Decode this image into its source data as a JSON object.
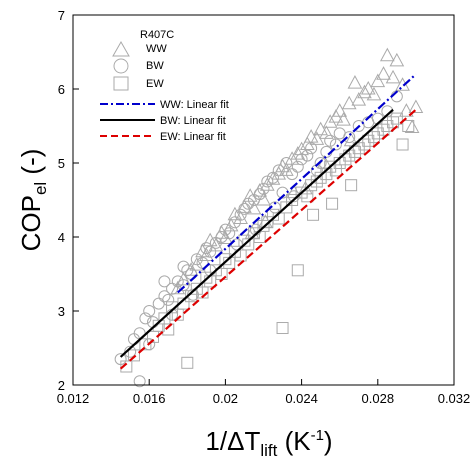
{
  "chart_data": {
    "type": "scatter",
    "xlim": [
      0.012,
      0.032
    ],
    "ylim": [
      2,
      7
    ],
    "x_ticks": [
      "0.012",
      "0.016",
      "0.02",
      "0.024",
      "0.028",
      "0.032"
    ],
    "y_ticks": [
      "2",
      "3",
      "4",
      "5",
      "6",
      "7"
    ],
    "xlabel": {
      "main": "1/ΔT",
      "sub": "lift",
      "unit_open": " (K",
      "unit_sup": "-1",
      "unit_close": ")"
    },
    "ylabel": {
      "main": "COP",
      "sub": "el",
      "rest": " (-)"
    },
    "legend": {
      "position": "top-left",
      "title": "R407C",
      "entries": [
        {
          "label": "WW",
          "kind": "marker",
          "marker": "triangle"
        },
        {
          "label": "BW",
          "kind": "marker",
          "marker": "circle"
        },
        {
          "label": "EW",
          "kind": "marker",
          "marker": "square"
        },
        {
          "label": "WW: Linear fit",
          "kind": "line",
          "color": "#0000cc",
          "dash": "dashdot"
        },
        {
          "label": "BW: Linear fit",
          "kind": "line",
          "color": "#000000",
          "dash": "solid"
        },
        {
          "label": "EW: Linear fit",
          "kind": "line",
          "color": "#dd0000",
          "dash": "dash"
        }
      ]
    },
    "fits": [
      {
        "name": "WW: Linear fit",
        "color": "#0000cc",
        "dash": "dashdot",
        "x": [
          0.0175,
          0.03
        ],
        "y": [
          3.25,
          6.2
        ]
      },
      {
        "name": "BW: Linear fit",
        "color": "#000000",
        "dash": "solid",
        "x": [
          0.0145,
          0.0288
        ],
        "y": [
          2.38,
          5.72
        ]
      },
      {
        "name": "EW: Linear fit",
        "color": "#dd0000",
        "dash": "dash",
        "x": [
          0.0145,
          0.03
        ],
        "y": [
          2.22,
          5.72
        ]
      }
    ],
    "series": [
      {
        "name": "WW",
        "marker": "triangle",
        "color": "#aaaaaa",
        "points": [
          [
            0.0175,
            3.3
          ],
          [
            0.0178,
            3.42
          ],
          [
            0.0182,
            3.55
          ],
          [
            0.0185,
            3.62
          ],
          [
            0.0188,
            3.8
          ],
          [
            0.019,
            3.75
          ],
          [
            0.0192,
            3.95
          ],
          [
            0.0195,
            3.88
          ],
          [
            0.0198,
            4.05
          ],
          [
            0.02,
            3.98
          ],
          [
            0.0203,
            4.15
          ],
          [
            0.0205,
            4.3
          ],
          [
            0.0208,
            4.25
          ],
          [
            0.021,
            4.4
          ],
          [
            0.0213,
            4.55
          ],
          [
            0.0215,
            4.38
          ],
          [
            0.0218,
            4.62
          ],
          [
            0.022,
            4.5
          ],
          [
            0.0222,
            4.7
          ],
          [
            0.0225,
            4.78
          ],
          [
            0.0228,
            4.85
          ],
          [
            0.023,
            4.95
          ],
          [
            0.0232,
            4.9
          ],
          [
            0.0235,
            5.05
          ],
          [
            0.0238,
            5.12
          ],
          [
            0.024,
            5.18
          ],
          [
            0.0243,
            5.25
          ],
          [
            0.0245,
            5.35
          ],
          [
            0.0248,
            5.32
          ],
          [
            0.025,
            5.45
          ],
          [
            0.0253,
            5.4
          ],
          [
            0.0255,
            5.55
          ],
          [
            0.0258,
            5.62
          ],
          [
            0.026,
            5.7
          ],
          [
            0.0262,
            5.58
          ],
          [
            0.0265,
            5.8
          ],
          [
            0.0268,
            6.08
          ],
          [
            0.027,
            5.85
          ],
          [
            0.0273,
            5.95
          ],
          [
            0.0275,
            6.0
          ],
          [
            0.0278,
            5.92
          ],
          [
            0.028,
            6.1
          ],
          [
            0.0283,
            6.2
          ],
          [
            0.0285,
            6.45
          ],
          [
            0.0288,
            6.15
          ],
          [
            0.029,
            6.38
          ],
          [
            0.0293,
            6.05
          ],
          [
            0.0295,
            5.7
          ],
          [
            0.0298,
            5.48
          ],
          [
            0.03,
            5.75
          ],
          [
            0.0242,
            4.65
          ],
          [
            0.0236,
            4.6
          ],
          [
            0.0214,
            4.05
          ],
          [
            0.0221,
            4.2
          ],
          [
            0.0252,
            5.0
          ],
          [
            0.0266,
            5.3
          ]
        ]
      },
      {
        "name": "BW",
        "marker": "circle",
        "color": "#aaaaaa",
        "points": [
          [
            0.0145,
            2.35
          ],
          [
            0.015,
            2.45
          ],
          [
            0.0152,
            2.62
          ],
          [
            0.0155,
            2.7
          ],
          [
            0.0155,
            2.05
          ],
          [
            0.0158,
            2.9
          ],
          [
            0.016,
            3.0
          ],
          [
            0.0162,
            2.85
          ],
          [
            0.0165,
            3.1
          ],
          [
            0.0168,
            3.2
          ],
          [
            0.017,
            3.15
          ],
          [
            0.0172,
            3.3
          ],
          [
            0.0175,
            3.4
          ],
          [
            0.0178,
            3.35
          ],
          [
            0.018,
            3.55
          ],
          [
            0.0182,
            3.5
          ],
          [
            0.0185,
            3.7
          ],
          [
            0.0188,
            3.65
          ],
          [
            0.019,
            3.85
          ],
          [
            0.0192,
            3.8
          ],
          [
            0.0195,
            3.92
          ],
          [
            0.0198,
            4.0
          ],
          [
            0.02,
            4.1
          ],
          [
            0.0202,
            4.05
          ],
          [
            0.0205,
            4.2
          ],
          [
            0.0208,
            4.3
          ],
          [
            0.021,
            4.38
          ],
          [
            0.0212,
            4.45
          ],
          [
            0.0215,
            4.5
          ],
          [
            0.0218,
            4.58
          ],
          [
            0.022,
            4.65
          ],
          [
            0.0222,
            4.75
          ],
          [
            0.0225,
            4.8
          ],
          [
            0.0228,
            4.9
          ],
          [
            0.023,
            4.6
          ],
          [
            0.0232,
            5.0
          ],
          [
            0.0235,
            4.85
          ],
          [
            0.0238,
            4.95
          ],
          [
            0.024,
            5.05
          ],
          [
            0.0243,
            5.1
          ],
          [
            0.0245,
            5.2
          ],
          [
            0.0248,
            4.9
          ],
          [
            0.025,
            5.0
          ],
          [
            0.0253,
            5.15
          ],
          [
            0.0255,
            5.3
          ],
          [
            0.0258,
            5.25
          ],
          [
            0.026,
            5.4
          ],
          [
            0.0265,
            5.35
          ],
          [
            0.027,
            5.5
          ],
          [
            0.0275,
            5.55
          ],
          [
            0.028,
            5.6
          ],
          [
            0.0285,
            5.7
          ],
          [
            0.029,
            5.9
          ],
          [
            0.0168,
            3.4
          ],
          [
            0.0178,
            3.6
          ],
          [
            0.0192,
            3.55
          ],
          [
            0.0206,
            3.9
          ],
          [
            0.0216,
            4.1
          ],
          [
            0.0226,
            4.4
          ],
          [
            0.0236,
            4.55
          ],
          [
            0.016,
            2.55
          ],
          [
            0.0172,
            2.95
          ],
          [
            0.0183,
            3.22
          ]
        ]
      },
      {
        "name": "EW",
        "marker": "square",
        "color": "#aaaaaa",
        "points": [
          [
            0.0148,
            2.25
          ],
          [
            0.0152,
            2.4
          ],
          [
            0.0158,
            2.55
          ],
          [
            0.0162,
            2.65
          ],
          [
            0.0165,
            2.8
          ],
          [
            0.0168,
            2.9
          ],
          [
            0.017,
            2.75
          ],
          [
            0.0172,
            3.05
          ],
          [
            0.0175,
            2.95
          ],
          [
            0.0178,
            3.1
          ],
          [
            0.018,
            2.3
          ],
          [
            0.0182,
            3.2
          ],
          [
            0.0185,
            3.3
          ],
          [
            0.0188,
            3.25
          ],
          [
            0.019,
            3.45
          ],
          [
            0.0192,
            3.4
          ],
          [
            0.0195,
            3.55
          ],
          [
            0.0198,
            3.5
          ],
          [
            0.02,
            3.7
          ],
          [
            0.0202,
            3.65
          ],
          [
            0.0205,
            3.8
          ],
          [
            0.0208,
            3.75
          ],
          [
            0.021,
            3.95
          ],
          [
            0.0212,
            3.9
          ],
          [
            0.0215,
            4.05
          ],
          [
            0.0218,
            4.0
          ],
          [
            0.022,
            4.15
          ],
          [
            0.0222,
            4.2
          ],
          [
            0.0225,
            4.3
          ],
          [
            0.0228,
            4.25
          ],
          [
            0.023,
            2.77
          ],
          [
            0.0232,
            4.4
          ],
          [
            0.0235,
            4.5
          ],
          [
            0.0238,
            3.55
          ],
          [
            0.024,
            4.6
          ],
          [
            0.0243,
            4.55
          ],
          [
            0.0245,
            4.7
          ],
          [
            0.0248,
            4.75
          ],
          [
            0.025,
            4.8
          ],
          [
            0.0253,
            4.85
          ],
          [
            0.0255,
            4.95
          ],
          [
            0.0258,
            4.9
          ],
          [
            0.026,
            5.0
          ],
          [
            0.0263,
            5.05
          ],
          [
            0.0265,
            5.1
          ],
          [
            0.0268,
            5.15
          ],
          [
            0.027,
            5.2
          ],
          [
            0.0273,
            5.25
          ],
          [
            0.0275,
            5.3
          ],
          [
            0.0278,
            5.35
          ],
          [
            0.028,
            5.4
          ],
          [
            0.0283,
            5.45
          ],
          [
            0.0285,
            5.5
          ],
          [
            0.0288,
            5.55
          ],
          [
            0.029,
            5.6
          ],
          [
            0.0293,
            5.25
          ],
          [
            0.0296,
            5.5
          ],
          [
            0.0246,
            4.3
          ],
          [
            0.0256,
            4.45
          ],
          [
            0.0266,
            4.7
          ]
        ]
      }
    ]
  }
}
